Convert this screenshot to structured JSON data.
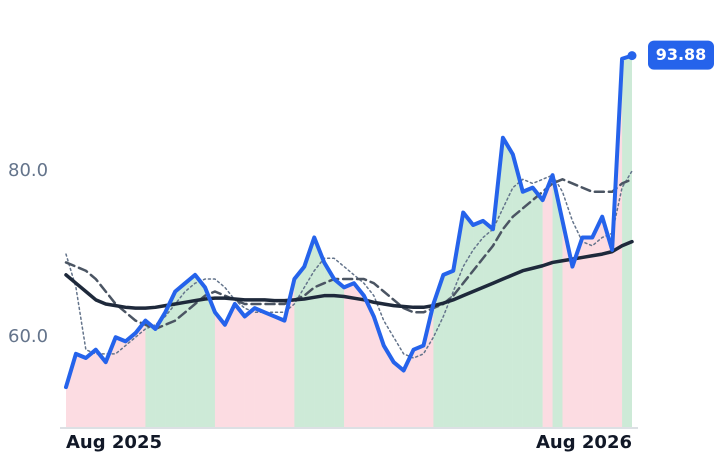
{
  "chart_data": {
    "type": "line",
    "categories": [
      "Aug 2025",
      null,
      null,
      null,
      null,
      null,
      null,
      null,
      null,
      null,
      null,
      null,
      null,
      null,
      null,
      null,
      null,
      null,
      null,
      null,
      null,
      null,
      null,
      null,
      null,
      null,
      null,
      null,
      null,
      null,
      null,
      null,
      null,
      null,
      null,
      null,
      null,
      null,
      null,
      null,
      null,
      null,
      null,
      null,
      null,
      null,
      null,
      null,
      null,
      null,
      null,
      null,
      null,
      null,
      null,
      null,
      null,
      "Aug 2026"
    ],
    "series": [
      {
        "color": "#2563eb",
        "style": "solid",
        "width": 4,
        "values": [
          54,
          58,
          57.5,
          58.5,
          57,
          60,
          59.5,
          60.5,
          62,
          61,
          63,
          65.5,
          66.5,
          67.5,
          66,
          63,
          61.5,
          64,
          62.5,
          63.5,
          63,
          62.5,
          62,
          67,
          68.5,
          72,
          69,
          67,
          66,
          66.5,
          65,
          62.5,
          59,
          57,
          56,
          58.5,
          59,
          64,
          67.5,
          68,
          75,
          73.5,
          74,
          73,
          84,
          82,
          77.5,
          78,
          76.5,
          79.5,
          74,
          68.5,
          72,
          72,
          74.5,
          70.5,
          93.5,
          93.88
        ]
      },
      {
        "color": "#4b5563",
        "style": "dashed",
        "width": 2.5,
        "values": [
          69,
          68.5,
          68,
          67,
          65.5,
          64,
          63,
          62,
          61.5,
          61,
          61.5,
          62,
          63,
          64,
          65,
          65.5,
          65,
          64.5,
          64,
          64,
          64,
          64,
          64,
          64.5,
          65,
          66,
          66.5,
          67,
          67,
          67,
          67,
          66.5,
          65.5,
          64.5,
          63.5,
          63,
          63,
          63.5,
          64,
          65,
          66.5,
          68,
          69.5,
          71,
          73,
          74.5,
          75.5,
          76.5,
          77.5,
          78.5,
          79,
          78.5,
          78,
          77.5,
          77.5,
          77.5,
          78.5,
          79
        ]
      },
      {
        "color": "#64748b",
        "style": "dotted",
        "width": 1.5,
        "values": [
          70,
          66,
          58.5,
          58,
          58,
          58,
          59,
          60,
          61,
          61.5,
          62.5,
          64,
          65.5,
          66.5,
          67,
          67,
          66,
          64.5,
          63.5,
          63,
          63,
          63,
          63,
          64,
          66,
          68,
          69.5,
          69.5,
          68.5,
          67.5,
          66.5,
          65,
          62,
          60,
          58,
          57.5,
          58,
          60,
          62.5,
          65.5,
          68.5,
          70.5,
          72,
          73,
          75.5,
          78,
          79,
          78.5,
          79,
          79.5,
          77.5,
          74,
          71.5,
          71,
          72,
          72.5,
          78,
          80
        ]
      },
      {
        "color": "#1e293b",
        "style": "solid",
        "width": 3.5,
        "values": [
          67.5,
          66.5,
          65.5,
          64.5,
          64,
          63.8,
          63.6,
          63.5,
          63.5,
          63.6,
          63.8,
          64,
          64.2,
          64.4,
          64.6,
          64.7,
          64.7,
          64.6,
          64.5,
          64.5,
          64.5,
          64.4,
          64.4,
          64.5,
          64.6,
          64.8,
          65,
          65,
          64.9,
          64.7,
          64.5,
          64.2,
          64,
          63.8,
          63.7,
          63.6,
          63.6,
          63.8,
          64.1,
          64.5,
          65,
          65.5,
          66,
          66.5,
          67,
          67.5,
          68,
          68.3,
          68.6,
          69,
          69.2,
          69.4,
          69.6,
          69.8,
          70,
          70.3,
          71,
          71.5
        ]
      }
    ],
    "ylim": [
      49.2,
      96
    ],
    "yticks": [
      {
        "value": 60,
        "label": "60.0"
      },
      {
        "value": 80,
        "label": "80.0"
      }
    ],
    "grid": false,
    "last_value_badge": true
  }
}
